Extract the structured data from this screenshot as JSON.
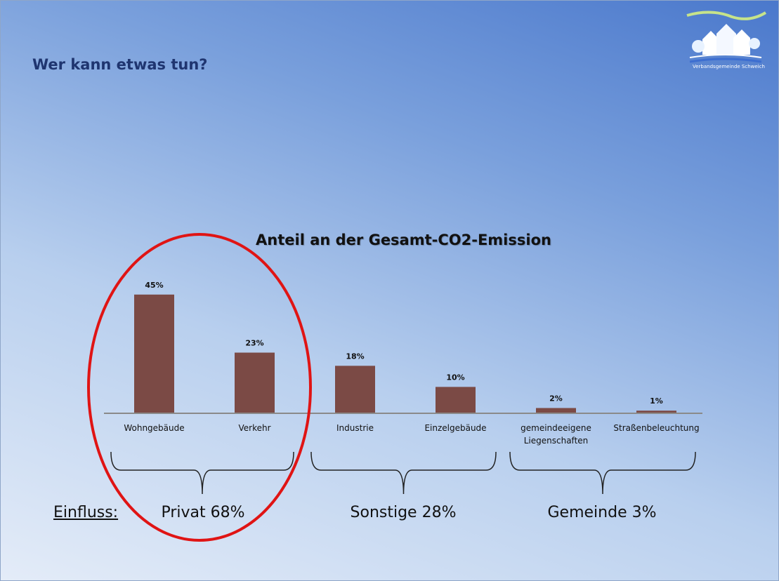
{
  "slide": {
    "heading": "Wer kann etwas tun?"
  },
  "logo": {
    "caption": "Verbandsgemeinde Schweich"
  },
  "chart_data": {
    "type": "bar",
    "title": "Anteil an der Gesamt-CO2-Emission",
    "categories": [
      "Wohngebäude",
      "Verkehr",
      "Industrie",
      "Einzelgebäude",
      "gemeindeeigene Liegenschaften",
      "Straßenbeleuchtung"
    ],
    "values": [
      45,
      23,
      18,
      10,
      2,
      1
    ],
    "value_labels": [
      "45%",
      "23%",
      "18%",
      "10%",
      "2%",
      "1%"
    ],
    "unit": "%",
    "ylim": [
      0,
      50
    ],
    "xlabel": "",
    "ylabel": "",
    "bar_color": "#7b4a45",
    "grid": false
  },
  "groups": {
    "influence_label": "Einfluss:",
    "items": [
      {
        "label": "Privat 68%"
      },
      {
        "label": "Sonstige 28%"
      },
      {
        "label": "Gemeinde 3%"
      }
    ]
  },
  "highlight": {
    "color": "#e01414"
  }
}
